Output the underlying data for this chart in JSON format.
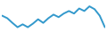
{
  "x": [
    0,
    1,
    2,
    3,
    4,
    5,
    6,
    7,
    8,
    9,
    10,
    11,
    12,
    13,
    14,
    15,
    16,
    17,
    18,
    19,
    20
  ],
  "y": [
    0.62,
    0.55,
    0.42,
    0.3,
    0.38,
    0.3,
    0.4,
    0.52,
    0.42,
    0.55,
    0.65,
    0.58,
    0.68,
    0.75,
    0.68,
    0.82,
    0.75,
    0.88,
    0.8,
    0.62,
    0.3
  ],
  "line_color": "#3399cc",
  "line_width": 1.4,
  "background_color": "#ffffff"
}
